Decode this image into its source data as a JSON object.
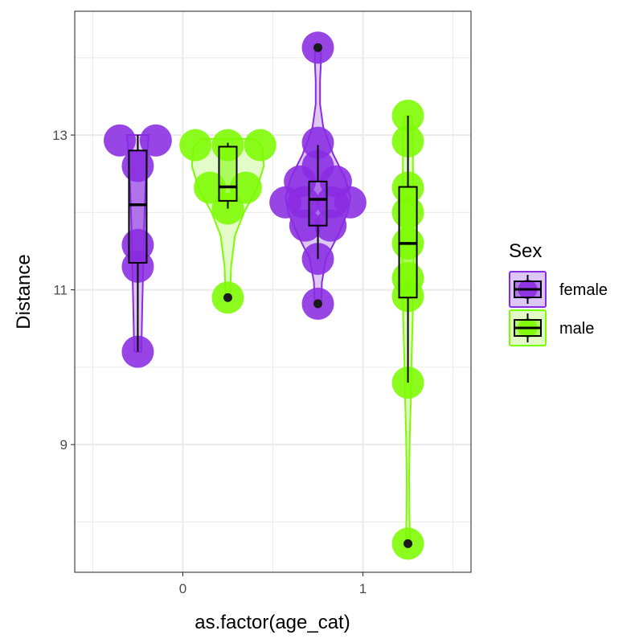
{
  "chart_data": {
    "type": "violin",
    "xlabel": "as.factor(age_cat)",
    "ylabel": "Distance",
    "x_ticks": [
      0,
      1
    ],
    "x_range": [
      -0.6,
      1.6
    ],
    "y_ticks": [
      9,
      11,
      13
    ],
    "y_range": [
      7.35,
      14.6
    ],
    "grid": true,
    "legend": {
      "title": "Sex",
      "position": "right",
      "entries": [
        {
          "label": "female",
          "color": "#8A2BE2"
        },
        {
          "label": "male",
          "color": "#7CFC00"
        }
      ]
    },
    "groups": [
      {
        "name": "female, age_cat 0",
        "sex": "female",
        "x": -0.25,
        "points": [
          {
            "x": -0.35,
            "y": 12.93
          },
          {
            "x": -0.15,
            "y": 12.93
          },
          {
            "x": -0.25,
            "y": 12.6
          },
          {
            "x": -0.25,
            "y": 11.58
          },
          {
            "x": -0.25,
            "y": 11.3
          },
          {
            "x": -0.25,
            "y": 10.2
          }
        ],
        "box": {
          "min": 10.2,
          "q1": 11.35,
          "median": 12.1,
          "q3": 12.8,
          "max": 13.0
        },
        "outliers": [],
        "violin": [
          [
            10.2,
            0.02
          ],
          [
            10.8,
            0.025
          ],
          [
            11.3,
            0.03
          ],
          [
            11.8,
            0.035
          ],
          [
            12.3,
            0.042
          ],
          [
            12.7,
            0.05
          ],
          [
            13.0,
            0.06
          ]
        ]
      },
      {
        "name": "male, age_cat 0",
        "sex": "male",
        "x": 0.25,
        "points": [
          {
            "x": 0.07,
            "y": 12.87
          },
          {
            "x": 0.25,
            "y": 12.87
          },
          {
            "x": 0.43,
            "y": 12.87
          },
          {
            "x": 0.15,
            "y": 12.32
          },
          {
            "x": 0.35,
            "y": 12.32
          },
          {
            "x": 0.25,
            "y": 12.05
          },
          {
            "x": 0.25,
            "y": 10.9
          }
        ],
        "box": {
          "min": 12.05,
          "q1": 12.15,
          "median": 12.33,
          "q3": 12.85,
          "max": 12.9
        },
        "outliers": [
          10.9
        ],
        "violin": [
          [
            10.9,
            0.012
          ],
          [
            11.3,
            0.018
          ],
          [
            11.7,
            0.04
          ],
          [
            12.0,
            0.09
          ],
          [
            12.3,
            0.16
          ],
          [
            12.6,
            0.2
          ],
          [
            12.85,
            0.19
          ],
          [
            12.95,
            0.15
          ]
        ]
      },
      {
        "name": "female, age_cat 1",
        "sex": "female",
        "x": 0.75,
        "points": [
          {
            "x": 0.75,
            "y": 14.13
          },
          {
            "x": 0.75,
            "y": 12.9
          },
          {
            "x": 0.75,
            "y": 12.6
          },
          {
            "x": 0.65,
            "y": 12.4
          },
          {
            "x": 0.85,
            "y": 12.4
          },
          {
            "x": 0.57,
            "y": 12.13
          },
          {
            "x": 0.67,
            "y": 12.13
          },
          {
            "x": 0.83,
            "y": 12.13
          },
          {
            "x": 0.93,
            "y": 12.13
          },
          {
            "x": 0.68,
            "y": 11.83
          },
          {
            "x": 0.82,
            "y": 11.83
          },
          {
            "x": 0.75,
            "y": 11.4
          },
          {
            "x": 0.75,
            "y": 10.82
          }
        ],
        "box": {
          "min": 11.4,
          "q1": 11.83,
          "median": 12.17,
          "q3": 12.4,
          "max": 12.87
        },
        "outliers": [
          14.13,
          10.82
        ],
        "violin": [
          [
            10.8,
            0.018
          ],
          [
            11.1,
            0.022
          ],
          [
            11.4,
            0.045
          ],
          [
            11.7,
            0.11
          ],
          [
            12.0,
            0.165
          ],
          [
            12.2,
            0.18
          ],
          [
            12.45,
            0.15
          ],
          [
            12.75,
            0.085
          ],
          [
            13.1,
            0.03
          ],
          [
            13.4,
            0.012
          ],
          [
            13.7,
            0.012
          ],
          [
            14.0,
            0.018
          ],
          [
            14.15,
            0.012
          ]
        ]
      },
      {
        "name": "male, age_cat 1",
        "sex": "male",
        "x": 1.25,
        "points": [
          {
            "x": 1.25,
            "y": 13.25
          },
          {
            "x": 1.25,
            "y": 12.92
          },
          {
            "x": 1.25,
            "y": 12.32
          },
          {
            "x": 1.25,
            "y": 12.0
          },
          {
            "x": 1.25,
            "y": 11.6
          },
          {
            "x": 1.25,
            "y": 11.15
          },
          {
            "x": 1.25,
            "y": 10.92
          },
          {
            "x": 1.25,
            "y": 9.8
          },
          {
            "x": 1.25,
            "y": 7.72
          }
        ],
        "box": {
          "min": 9.8,
          "q1": 10.9,
          "median": 11.6,
          "q3": 12.33,
          "max": 13.25
        },
        "outliers": [
          7.72
        ],
        "violin": [
          [
            7.72,
            0.012
          ],
          [
            8.1,
            0.008
          ],
          [
            8.6,
            0.007
          ],
          [
            9.1,
            0.01
          ],
          [
            9.6,
            0.016
          ],
          [
            10.1,
            0.02
          ],
          [
            10.6,
            0.026
          ],
          [
            11.1,
            0.03
          ],
          [
            11.6,
            0.032
          ],
          [
            12.1,
            0.03
          ],
          [
            12.6,
            0.028
          ],
          [
            13.0,
            0.027
          ],
          [
            13.25,
            0.022
          ]
        ]
      }
    ]
  },
  "colors": {
    "female": "#8A2BE2",
    "male": "#7CFC00",
    "female_light": "#DCC6F3",
    "male_light": "#E2FBC6",
    "grid": "#EBEBEB",
    "panel_border": "#333333"
  }
}
